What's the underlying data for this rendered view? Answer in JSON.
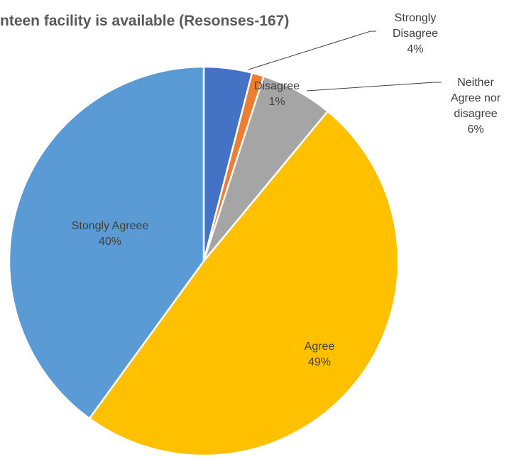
{
  "chart_data": {
    "type": "pie",
    "title": "nteen facility is available (Resonses-167)",
    "categories": [
      "Strongly Disagree",
      "Disagree",
      "Neither Agree nor disagree",
      "Agree",
      "Stongly Agreee"
    ],
    "values": [
      4,
      1,
      6,
      49,
      40
    ],
    "value_labels": [
      "4%",
      "1%",
      "6%",
      "49%",
      "40%"
    ],
    "colors": [
      "#4472c4",
      "#ed7d31",
      "#a5a5a5",
      "#ffc000",
      "#5b9bd5"
    ]
  }
}
